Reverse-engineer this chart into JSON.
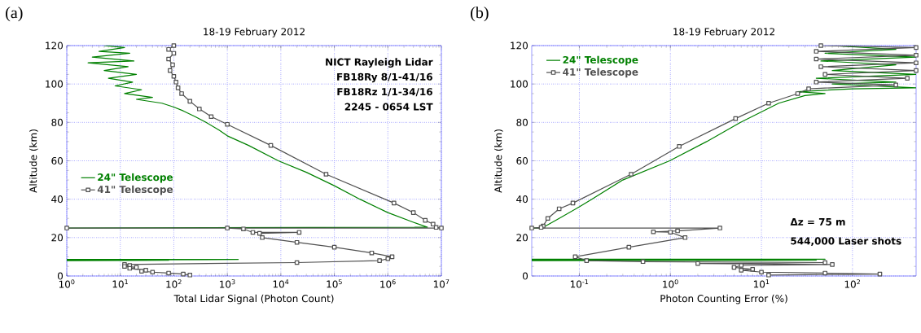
{
  "chart_data": [
    {
      "type": "line",
      "title": "18-19 February 2012",
      "xlabel": "Total Lidar Signal (Photon Count)",
      "ylabel": "Altitude (km)",
      "log": "x",
      "grid": true,
      "legend": "left",
      "xlim": [
        1,
        10000000
      ],
      "ylim": [
        0,
        120
      ],
      "xticks": [
        {
          "value": 1,
          "label": "10$^{0}$"
        },
        {
          "value": 10,
          "label": "10$^{1}$"
        },
        {
          "value": 100,
          "label": "10$^{2}$"
        },
        {
          "value": 1000,
          "label": "10$^{3}$"
        },
        {
          "value": 10000,
          "label": "10$^{4}$"
        },
        {
          "value": 100000,
          "label": "10$^{5}$"
        },
        {
          "value": 1000000,
          "label": "10$^{6}$"
        },
        {
          "value": 10000000,
          "label": "10$^{7}$"
        }
      ],
      "yticks": [
        0,
        20,
        40,
        60,
        80,
        100,
        120
      ],
      "annotations": [
        "(a)",
        "NICT Rayleigh Lidar",
        "FB18Ry 8/1-41/16",
        "FB18Rz 1/1-34/16",
        "2245 - 0654 LST"
      ],
      "series": [
        {
          "name": "24\" Telescope",
          "color": "#008000",
          "marker": "none",
          "x": [
            5,
            12,
            4,
            15,
            3,
            18,
            2.5,
            14,
            5,
            20,
            6,
            17,
            8,
            25,
            12,
            40,
            20,
            60,
            100,
            150,
            250,
            400,
            700,
            1000,
            2500,
            9000,
            30000,
            100000,
            300000,
            1000000,
            3000000,
            5500000,
            1,
            null,
            1,
            1600,
            1,
            80,
            1
          ],
          "values": [
            120,
            119,
            117,
            116,
            114,
            112,
            111,
            109,
            107,
            105,
            103,
            101,
            99,
            97,
            95,
            93,
            92,
            90,
            88,
            86,
            83,
            80,
            76,
            73,
            68,
            60,
            54,
            47,
            40,
            33,
            28,
            25.4,
            25,
            null,
            8.6,
            8.6,
            8.3,
            8.2,
            8.0
          ]
        },
        {
          "name": "41\" Telescope",
          "color": "#505050",
          "marker": "square",
          "x": [
            100,
            80,
            100,
            80,
            95,
            85,
            100,
            110,
            120,
            140,
            200,
            300,
            500,
            1000,
            6500,
            70000,
            1300000,
            3000000,
            5000000,
            7000000,
            8000000,
            10000000,
            1,
            1000,
            2000,
            3000,
            22000,
            4000,
            4500,
            20000,
            100000,
            500000,
            1200000,
            1000000,
            700000,
            20000,
            12,
            15,
            12,
            20,
            15,
            30,
            25,
            40,
            80,
            150,
            200
          ],
          "values": [
            120,
            118,
            116,
            113,
            110,
            107,
            104,
            101,
            98,
            95,
            91,
            87,
            83,
            79,
            68,
            53,
            38,
            33,
            29,
            27,
            25.3,
            25,
            25,
            25,
            24.5,
            22.7,
            22.7,
            22.2,
            20,
            17.5,
            15,
            12,
            10,
            9,
            8,
            7,
            6,
            5.5,
            5,
            4.5,
            4,
            3,
            2.5,
            2,
            1.5,
            1,
            0.5
          ]
        }
      ]
    },
    {
      "type": "line",
      "title": "18-19 February 2012",
      "xlabel": "Photon Counting Error (%)",
      "ylabel": "Altitude (km)",
      "log": "x",
      "grid": true,
      "legend": "top left",
      "xlim": [
        0.03,
        500
      ],
      "ylim": [
        0,
        120
      ],
      "xticks": [
        {
          "value": 0.1,
          "label": "10$^{-1}$"
        },
        {
          "value": 1,
          "label": "10$^{0}$"
        },
        {
          "value": 10,
          "label": "10$^{1}$"
        },
        {
          "value": 100,
          "label": "10$^{2}$"
        }
      ],
      "yticks": [
        0,
        20,
        40,
        60,
        80,
        100,
        120
      ],
      "annotations": [
        "(b)",
        "Δz = 75 m",
        "544,000 Laser shots"
      ],
      "series": [
        {
          "name": "24\" Telescope",
          "color": "#008000",
          "marker": "none",
          "x": [
            0.03,
            0.039,
            0.06,
            0.1,
            0.137,
            0.3,
            0.98,
            2.5,
            5.9,
            15.5,
            30,
            50,
            25,
            100,
            500,
            60,
            300,
            40,
            500,
            60,
            300,
            45,
            500,
            50,
            300,
            60,
            null,
            0.03,
            50,
            0.03,
            40,
            0.03
          ],
          "values": [
            25,
            25,
            30,
            36,
            40,
            50,
            60,
            70,
            80,
            90,
            94,
            95,
            96,
            97.5,
            98,
            100,
            101,
            103,
            105,
            107,
            110,
            112,
            114,
            116,
            118,
            120,
            null,
            8.7,
            8.7,
            8.3,
            8.2,
            8.0
          ]
        },
        {
          "name": "41\" Telescope",
          "color": "#505050",
          "marker": "square",
          "x": [
            45,
            500,
            40,
            500,
            40,
            500,
            45,
            500,
            50,
            400,
            40,
            300,
            33,
            25,
            12,
            5.2,
            1.25,
            0.37,
            0.085,
            0.06,
            0.045,
            0.04,
            0.038,
            0.03,
            3.5,
            1.2,
            0.65,
            1.0,
            1.45,
            0.35,
            0.09,
            0.12,
            0.5,
            50,
            2,
            60,
            6,
            5,
            8,
            6,
            10,
            50,
            200,
            12
          ],
          "values": [
            120,
            119,
            117,
            115,
            113,
            111,
            109,
            107,
            105,
            103,
            101,
            99.5,
            97.5,
            95,
            90,
            82,
            67.5,
            53,
            38,
            35,
            30,
            26,
            25.3,
            25,
            25,
            23.5,
            23,
            22.8,
            20,
            15,
            10,
            8,
            7.5,
            7,
            6.5,
            6,
            5.5,
            4.5,
            3.5,
            3,
            2,
            1.5,
            1,
            0.5
          ]
        }
      ]
    }
  ]
}
